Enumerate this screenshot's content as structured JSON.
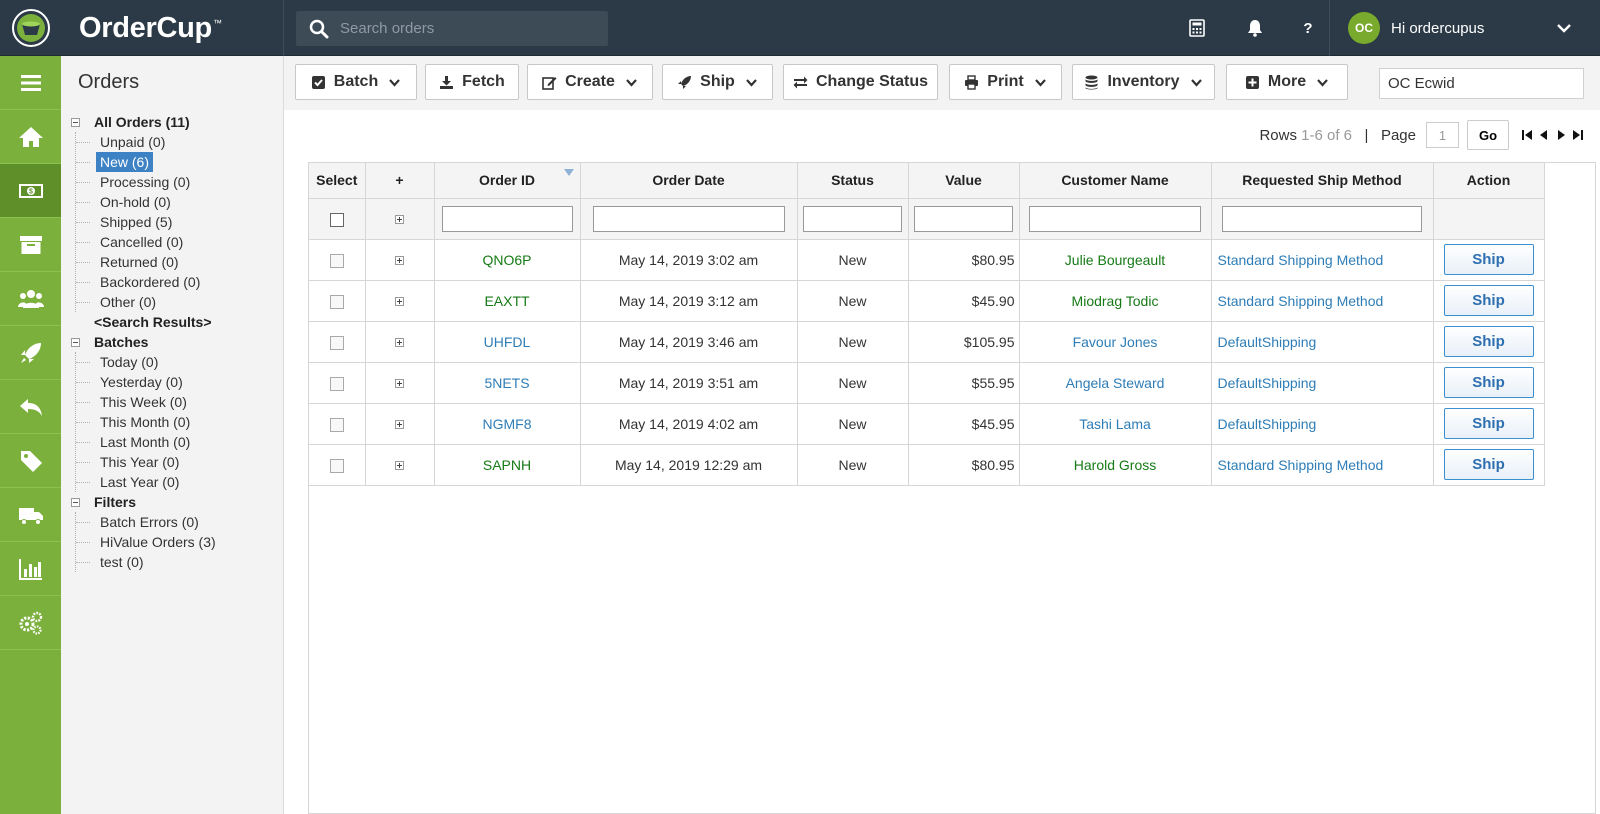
{
  "app": {
    "name": "OrderCup",
    "trademark": "™"
  },
  "search": {
    "placeholder": "Search orders"
  },
  "header": {
    "help": "?",
    "user_initials": "OC",
    "greeting": "Hi ordercupus"
  },
  "sidebar": {
    "title": "Orders",
    "groups": [
      {
        "label": "All Orders (11)",
        "children": [
          "Unpaid (0)",
          "New (6)",
          "Processing (0)",
          "On-hold (0)",
          "Shipped (5)",
          "Cancelled (0)",
          "Returned (0)",
          "Backordered (0)",
          "Other (0)"
        ]
      },
      {
        "label": "<Search Results>"
      },
      {
        "label": "Batches",
        "children": [
          "Today (0)",
          "Yesterday (0)",
          "This Week (0)",
          "This Month (0)",
          "Last Month (0)",
          "This Year (0)",
          "Last Year (0)"
        ]
      },
      {
        "label": "Filters",
        "children": [
          "Batch Errors (0)",
          "HiValue Orders (3)",
          "test (0)"
        ]
      }
    ],
    "selected": "New (6)"
  },
  "toolbar": {
    "batch": "Batch",
    "fetch": "Fetch",
    "create": "Create",
    "ship": "Ship",
    "change_status": "Change Status",
    "print": "Print",
    "inventory": "Inventory",
    "more": "More",
    "store_value": "OC Ecwid"
  },
  "pager": {
    "rows_label": "Rows",
    "rows_range": "1-6 of 6",
    "separator": "|",
    "page_label": "Page",
    "page_value": "1",
    "go": "Go"
  },
  "table": {
    "columns": [
      "Select",
      "+",
      "Order ID",
      "Order Date",
      "Status",
      "Value",
      "Customer Name",
      "Requested Ship Method",
      "Action"
    ],
    "rows": [
      {
        "id": "QNO6P",
        "date": "May 14, 2019 3:02 am",
        "status": "New",
        "value": "$80.95",
        "customer": "Julie Bourgeault",
        "method": "Standard Shipping Method",
        "action": "Ship",
        "color": "green"
      },
      {
        "id": "EAXTT",
        "date": "May 14, 2019 3:12 am",
        "status": "New",
        "value": "$45.90",
        "customer": "Miodrag Todic",
        "method": "Standard Shipping Method",
        "action": "Ship",
        "color": "green"
      },
      {
        "id": "UHFDL",
        "date": "May 14, 2019 3:46 am",
        "status": "New",
        "value": "$105.95",
        "customer": "Favour Jones",
        "method": "DefaultShipping",
        "action": "Ship",
        "color": "blue"
      },
      {
        "id": "5NETS",
        "date": "May 14, 2019 3:51 am",
        "status": "New",
        "value": "$55.95",
        "customer": "Angela Steward",
        "method": "DefaultShipping",
        "action": "Ship",
        "color": "blue"
      },
      {
        "id": "NGMF8",
        "date": "May 14, 2019 4:02 am",
        "status": "New",
        "value": "$45.95",
        "customer": "Tashi Lama",
        "method": "DefaultShipping",
        "action": "Ship",
        "color": "blue"
      },
      {
        "id": "SAPNH",
        "date": "May 14, 2019 12:29 am",
        "status": "New",
        "value": "$80.95",
        "customer": "Harold Gross",
        "method": "Standard Shipping Method",
        "action": "Ship",
        "color": "green"
      }
    ]
  },
  "colors": {
    "topbar": "#2b3a46",
    "nav_green": "#7cb03d",
    "nav_active": "#5f8f29",
    "select_blue": "#3c82c4",
    "link_green": "#167a16",
    "link_blue": "#2e7db6"
  },
  "icons": {
    "nav": [
      "menu-icon",
      "home-icon",
      "money-icon",
      "archive-icon",
      "users-icon",
      "rocket-icon",
      "reply-icon",
      "tag-icon",
      "truck-icon",
      "bar-chart-icon",
      "gears-icon"
    ],
    "top": [
      "calculator-icon",
      "bell-icon",
      "help-icon"
    ]
  }
}
